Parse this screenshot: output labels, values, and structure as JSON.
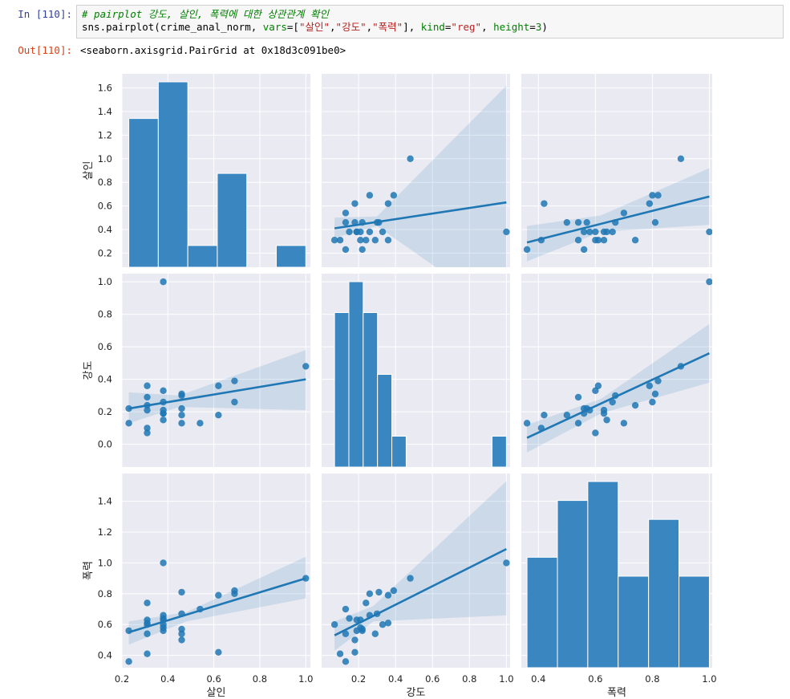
{
  "cell": {
    "in_prompt": "In [110]:",
    "out_prompt": "Out[110]:",
    "code_comment": "# pairplot 강도, 살인, 폭력에 대한 상관관계 확인",
    "code_pre": "sns.pairplot(crime_anal_norm, ",
    "code_vars_kw": "vars",
    "code_eq": "=[",
    "code_s1": "\"살인\"",
    "code_sep1": ",",
    "code_s2": "\"강도\"",
    "code_sep2": ",",
    "code_s3": "\"폭력\"",
    "code_mid": "], ",
    "code_kind_kw": "kind",
    "code_eq2": "=",
    "code_kind_val": "\"reg\"",
    "code_sep3": ", ",
    "code_height_kw": "height",
    "code_eq3": "=",
    "code_height_val": "3",
    "code_end": ")",
    "output_text": "<seaborn.axisgrid.PairGrid at 0x18d3c091be0>"
  },
  "colors": {
    "panel_bg": "#eaeaf2",
    "grid": "#ffffff",
    "point": "#1f77b4",
    "line": "#1f77b4",
    "band": "#1f77b4",
    "bar": "#3a86c1"
  },
  "chart_data": {
    "type": "pairplot",
    "kind": "reg",
    "vars": [
      "살인",
      "강도",
      "폭력"
    ],
    "xlabels": [
      "살인",
      "강도",
      "폭력"
    ],
    "ylabels": [
      "살인",
      "강도",
      "폭력"
    ],
    "axes": {
      "살인": {
        "lim": [
          0.2,
          1.02
        ],
        "ticks": [
          0.2,
          0.4,
          0.6,
          0.8,
          1.0
        ],
        "ticklabels": [
          "0.2",
          "0.4",
          "0.6",
          "0.8",
          "1.0"
        ]
      },
      "강도": {
        "lim": [
          0.0,
          1.02
        ],
        "ticks": [
          0.2,
          0.4,
          0.6,
          0.8,
          1.0
        ],
        "ticklabels": [
          "0.2",
          "0.4",
          "0.6",
          "0.8",
          "1.0"
        ]
      },
      "폭력": {
        "lim": [
          0.34,
          1.01
        ],
        "ticks": [
          0.4,
          0.6,
          0.8,
          1.0
        ],
        "ticklabels": [
          "0.4",
          "0.6",
          "0.8",
          "1.0"
        ]
      }
    },
    "row_axes": {
      "살인": {
        "lim": [
          0.08,
          1.72
        ],
        "ticks": [
          0.2,
          0.4,
          0.6,
          0.8,
          1.0,
          1.2,
          1.4,
          1.6
        ],
        "ticklabels": [
          "0.2",
          "0.4",
          "0.6",
          "0.8",
          "1.0",
          "1.2",
          "1.4",
          "1.6"
        ]
      },
      "강도": {
        "lim": [
          -0.14,
          1.05
        ],
        "ticks": [
          0.0,
          0.2,
          0.4,
          0.6,
          0.8,
          1.0
        ],
        "ticklabels": [
          "0.0",
          "0.2",
          "0.4",
          "0.6",
          "0.8",
          "1.0"
        ]
      },
      "폭력": {
        "lim": [
          0.32,
          1.58
        ],
        "ticks": [
          0.4,
          0.6,
          0.8,
          1.0,
          1.2,
          1.4
        ],
        "ticklabels": [
          "0.4",
          "0.6",
          "0.8",
          "1.0",
          "1.2",
          "1.4"
        ]
      }
    },
    "histograms": {
      "살인": {
        "edges": [
          0.23,
          0.3583,
          0.4867,
          0.615,
          0.7433,
          0.8717,
          1.0
        ],
        "counts": [
          1.3,
          1.62,
          0.19,
          0.82,
          0.0,
          0.19
        ]
      },
      "강도": {
        "edges": [
          0.07,
          0.1475,
          0.225,
          0.3025,
          0.38,
          0.4575,
          0.535,
          0.6125,
          0.69,
          0.7675,
          0.845,
          0.9225,
          1.0
        ],
        "counts": [
          0.55,
          0.66,
          0.55,
          0.33,
          0.11,
          0.0,
          0.0,
          0.0,
          0.0,
          0.0,
          0.0,
          0.11
        ]
      },
      "폭력": {
        "edges": [
          0.36,
          0.4667,
          0.5733,
          0.68,
          0.7867,
          0.8933,
          1.0
        ],
        "counts": [
          0.7,
          1.06,
          1.18,
          0.58,
          0.94,
          0.58
        ]
      }
    },
    "points": {
      "살인": [
        0.23,
        0.23,
        0.31,
        0.31,
        0.31,
        0.31,
        0.31,
        0.31,
        0.38,
        0.38,
        0.38,
        0.38,
        0.38,
        0.38,
        0.38,
        0.46,
        0.46,
        0.46,
        0.46,
        0.46,
        0.54,
        0.62,
        0.62,
        0.69,
        0.69,
        1.0
      ],
      "강도": [
        0.22,
        0.13,
        0.1,
        0.07,
        0.21,
        0.24,
        0.29,
        0.36,
        1.0,
        0.26,
        0.33,
        0.15,
        0.19,
        0.21,
        0.19,
        0.31,
        0.3,
        0.13,
        0.18,
        0.22,
        0.13,
        0.36,
        0.18,
        0.26,
        0.39,
        0.48
      ],
      "폭력": [
        0.56,
        0.36,
        0.41,
        0.6,
        0.63,
        0.74,
        0.54,
        0.61,
        1.0,
        0.66,
        0.6,
        0.64,
        0.56,
        0.58,
        0.63,
        0.81,
        0.67,
        0.54,
        0.5,
        0.57,
        0.7,
        0.79,
        0.42,
        0.8,
        0.82,
        0.9
      ]
    },
    "regressions": [
      {
        "x": "강도",
        "y": "살인",
        "x0": 0.07,
        "x1": 1.0,
        "y0": 0.41,
        "y1": 0.63,
        "band": [
          [
            0.07,
            0.33,
            0.5
          ],
          [
            0.3,
            0.43,
            0.51
          ],
          [
            1.0,
            -0.34,
            1.62
          ]
        ]
      },
      {
        "x": "폭력",
        "y": "살인",
        "x0": 0.36,
        "x1": 1.0,
        "y0": 0.29,
        "y1": 0.68,
        "band": [
          [
            0.36,
            0.13,
            0.43
          ],
          [
            0.62,
            0.38,
            0.52
          ],
          [
            1.0,
            0.44,
            0.92
          ]
        ]
      },
      {
        "x": "살인",
        "y": "강도",
        "x0": 0.23,
        "x1": 1.0,
        "y0": 0.22,
        "y1": 0.4,
        "band": [
          [
            0.23,
            0.13,
            0.32
          ],
          [
            0.45,
            0.23,
            0.3
          ],
          [
            1.0,
            0.21,
            0.58
          ]
        ]
      },
      {
        "x": "폭력",
        "y": "강도",
        "x0": 0.36,
        "x1": 1.0,
        "y0": 0.04,
        "y1": 0.56,
        "band": [
          [
            0.36,
            -0.05,
            0.12
          ],
          [
            0.62,
            0.19,
            0.28
          ],
          [
            1.0,
            0.38,
            0.74
          ]
        ]
      },
      {
        "x": "살인",
        "y": "폭력",
        "x0": 0.23,
        "x1": 1.0,
        "y0": 0.55,
        "y1": 0.9,
        "band": [
          [
            0.23,
            0.47,
            0.62
          ],
          [
            0.48,
            0.62,
            0.68
          ],
          [
            1.0,
            0.77,
            1.04
          ]
        ]
      },
      {
        "x": "강도",
        "y": "폭력",
        "x0": 0.07,
        "x1": 1.0,
        "y0": 0.53,
        "y1": 1.09,
        "band": [
          [
            0.07,
            0.43,
            0.62
          ],
          [
            0.28,
            0.62,
            0.72
          ],
          [
            1.0,
            0.66,
            1.53
          ]
        ]
      }
    ]
  }
}
